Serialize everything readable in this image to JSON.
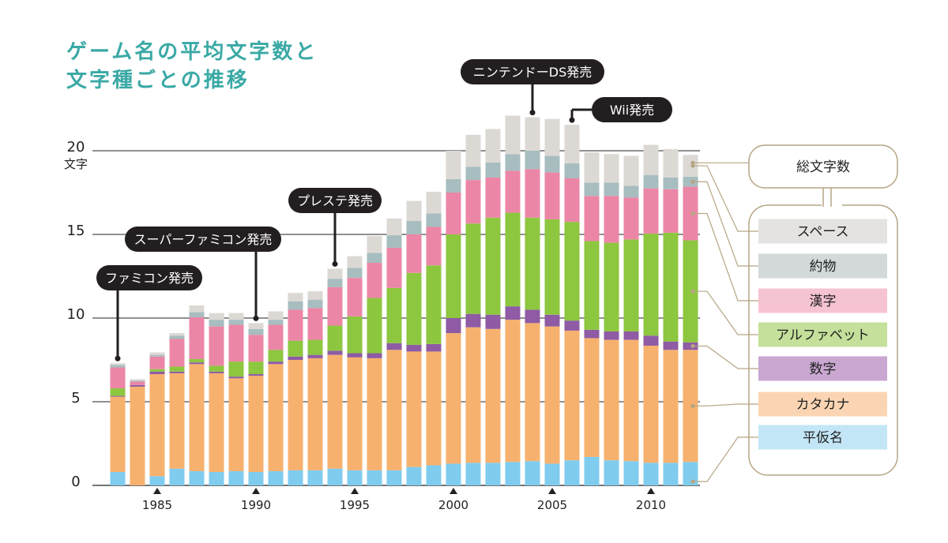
{
  "chart_data": {
    "type": "bar",
    "stacked": true,
    "title_lines": [
      "ゲーム名の平均文字数と",
      "文字種ごとの推移"
    ],
    "y_unit": "文字",
    "ylim": [
      0,
      23
    ],
    "yticks": [
      0,
      5,
      10,
      15,
      20
    ],
    "grid": true,
    "x": [
      1983,
      1984,
      1985,
      1986,
      1987,
      1988,
      1989,
      1990,
      1991,
      1992,
      1993,
      1994,
      1995,
      1996,
      1997,
      1998,
      1999,
      2000,
      2001,
      2002,
      2003,
      2004,
      2005,
      2006,
      2007,
      2008,
      2009,
      2010,
      2011,
      2012
    ],
    "xtick_labels": [
      1985,
      1990,
      1995,
      2000,
      2005,
      2010
    ],
    "series": [
      {
        "name": "平仮名",
        "color": "#7fccef",
        "values": [
          0.8,
          0,
          0.55,
          1.0,
          0.85,
          0.8,
          0.85,
          0.8,
          0.85,
          0.9,
          0.9,
          1.0,
          0.9,
          0.9,
          0.9,
          1.1,
          1.2,
          1.3,
          1.35,
          1.35,
          1.4,
          1.45,
          1.3,
          1.5,
          1.7,
          1.5,
          1.45,
          1.35,
          1.35,
          1.4
        ]
      },
      {
        "name": "カタカナ",
        "color": "#f7b16e",
        "values": [
          4.5,
          5.9,
          6.1,
          5.7,
          6.4,
          5.9,
          5.55,
          5.75,
          6.4,
          6.6,
          6.7,
          6.8,
          6.75,
          6.7,
          7.2,
          6.9,
          6.8,
          7.8,
          8.1,
          8.0,
          8.5,
          8.25,
          8.2,
          7.75,
          7.1,
          7.2,
          7.25,
          7.0,
          6.75,
          6.7
        ]
      },
      {
        "name": "数字",
        "color": "#8e5ba4",
        "values": [
          0.05,
          0.1,
          0.15,
          0.1,
          0.1,
          0.1,
          0.1,
          0.1,
          0.15,
          0.2,
          0.2,
          0.25,
          0.25,
          0.3,
          0.4,
          0.4,
          0.45,
          0.9,
          0.8,
          0.85,
          0.8,
          0.8,
          0.7,
          0.6,
          0.5,
          0.5,
          0.5,
          0.6,
          0.5,
          0.45
        ]
      },
      {
        "name": "アルファベット",
        "color": "#8dc63f",
        "values": [
          0.45,
          0,
          0.15,
          0.3,
          0.2,
          0.35,
          0.9,
          0.75,
          0.7,
          0.95,
          0.9,
          1.5,
          2.2,
          3.3,
          3.3,
          4.3,
          4.7,
          5.0,
          5.4,
          5.8,
          5.6,
          5.5,
          5.7,
          5.9,
          5.3,
          5.3,
          5.5,
          6.1,
          6.5,
          6.1
        ]
      },
      {
        "name": "漢字",
        "color": "#ec86a6",
        "values": [
          1.25,
          0.2,
          0.75,
          1.65,
          2.5,
          2.35,
          2.2,
          1.6,
          1.5,
          1.85,
          1.9,
          2.3,
          2.3,
          2.1,
          2.4,
          2.3,
          2.3,
          2.5,
          2.6,
          2.4,
          2.5,
          2.9,
          2.8,
          2.6,
          2.7,
          2.8,
          2.5,
          2.7,
          2.6,
          3.2
        ]
      },
      {
        "name": "約物",
        "color": "#a7bdbf",
        "values": [
          0.15,
          0.05,
          0.1,
          0.2,
          0.3,
          0.4,
          0.3,
          0.35,
          0.3,
          0.5,
          0.5,
          0.5,
          0.6,
          0.6,
          0.75,
          0.8,
          0.8,
          0.8,
          0.8,
          0.9,
          1.0,
          1.1,
          1.0,
          0.9,
          0.8,
          0.8,
          0.7,
          0.8,
          0.7,
          0.6
        ]
      },
      {
        "name": "スペース",
        "color": "#dcd8d4",
        "values": [
          0.1,
          0.1,
          0.15,
          0.15,
          0.4,
          0.4,
          0.4,
          0.35,
          0.5,
          0.5,
          0.5,
          0.6,
          0.7,
          1.0,
          1.0,
          1.2,
          1.3,
          1.7,
          1.9,
          2.0,
          2.3,
          2.0,
          2.2,
          2.3,
          1.8,
          1.7,
          1.8,
          1.8,
          1.7,
          1.3
        ]
      }
    ],
    "legend_header": "総文字数",
    "events": [
      {
        "label": "ファミコン発売",
        "year": 1983
      },
      {
        "label": "スーパーファミコン発売",
        "year": 1990
      },
      {
        "label": "プレステ発売",
        "year": 1994
      },
      {
        "label": "ニンテンドーDS発売",
        "year": 2004
      },
      {
        "label": "Wii発売",
        "year": 2006
      }
    ]
  }
}
